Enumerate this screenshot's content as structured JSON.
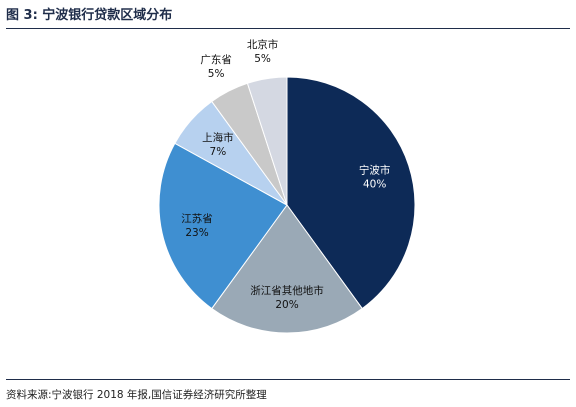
{
  "title": "图 3:  宁波银行贷款区域分布",
  "source": "资料来源:宁波银行 2018 年报,国信证券经济研究所整理",
  "chart_data": {
    "type": "pie",
    "categories": [
      "宁波市",
      "浙江省其他地市",
      "江苏省",
      "上海市",
      "广东省",
      "北京市"
    ],
    "values": [
      40,
      20,
      23,
      7,
      5,
      5
    ],
    "value_labels": [
      "40%",
      "20%",
      "23%",
      "7%",
      "5%",
      "5%"
    ],
    "colors": [
      "#0d2a57",
      "#9aa9b6",
      "#3f8fd1",
      "#b7d1ef",
      "#c9c9c9",
      "#d4d8e2"
    ],
    "label_colors": [
      "#ffffff",
      "#111111",
      "#111111",
      "#111111",
      "#111111",
      "#111111"
    ],
    "start_angle": "12 o'clock, clockwise"
  }
}
